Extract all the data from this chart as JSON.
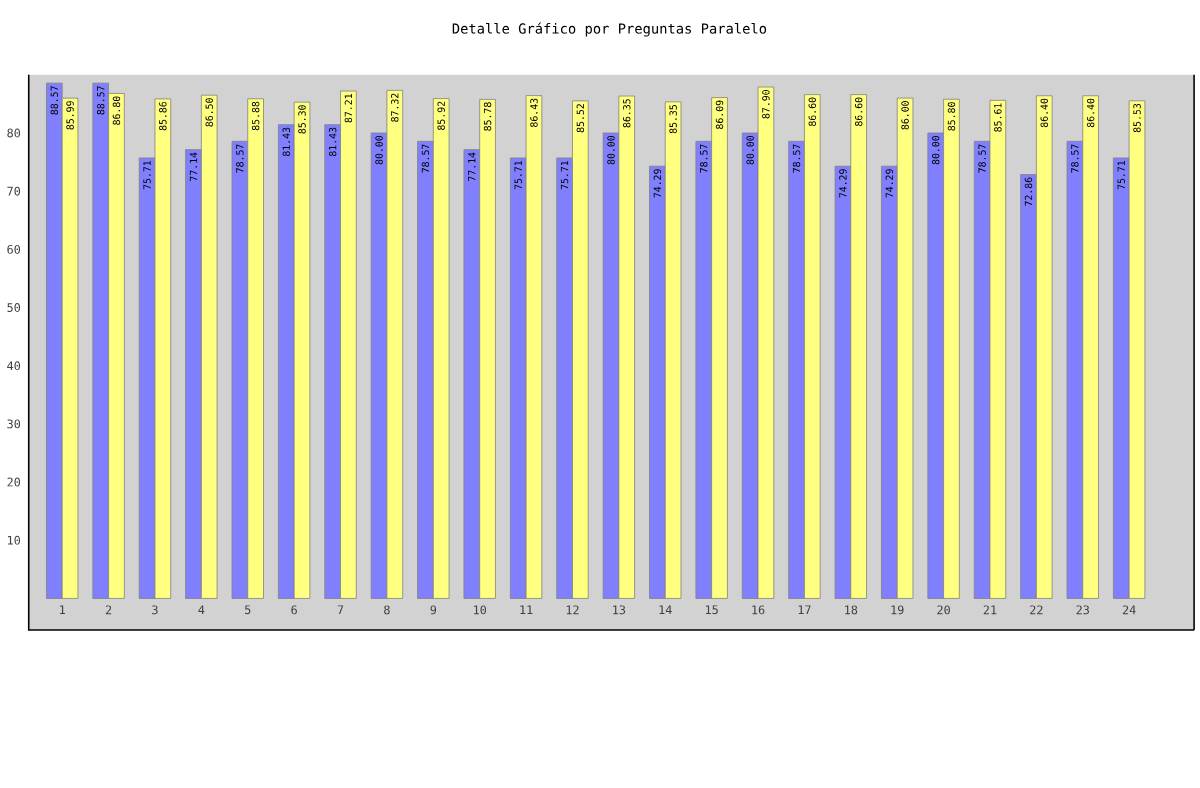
{
  "chart_data": {
    "type": "bar",
    "title": "Detalle Gráfico por Preguntas Paralelo",
    "categories": [
      "1",
      "2",
      "3",
      "4",
      "5",
      "6",
      "7",
      "8",
      "9",
      "10",
      "11",
      "12",
      "13",
      "14",
      "15",
      "16",
      "17",
      "18",
      "19",
      "20",
      "21",
      "22",
      "23",
      "24"
    ],
    "series": [
      {
        "color": "#8080ff",
        "values": [
          88.57,
          88.57,
          75.71,
          77.14,
          78.57,
          81.43,
          81.43,
          80.0,
          78.57,
          77.14,
          75.71,
          75.71,
          80.0,
          74.29,
          78.57,
          80.0,
          78.57,
          74.29,
          74.29,
          80.0,
          78.57,
          72.86,
          78.57,
          75.71
        ],
        "value_labels": [
          "88.57",
          "88.57",
          "75.71",
          "77.14",
          "78.57",
          "81.43",
          "81.43",
          "80.00",
          "78.57",
          "77.14",
          "75.71",
          "75.71",
          "80.00",
          "74.29",
          "78.57",
          "80.00",
          "78.57",
          "74.29",
          "74.29",
          "80.00",
          "78.57",
          "72.86",
          "78.57",
          "75.71"
        ]
      },
      {
        "color": "#ffff80",
        "values": [
          85.99,
          86.8,
          85.86,
          86.5,
          85.88,
          85.3,
          87.21,
          87.32,
          85.92,
          85.78,
          86.43,
          85.52,
          86.35,
          85.35,
          86.09,
          87.9,
          86.6,
          86.6,
          86.0,
          85.8,
          85.61,
          86.4,
          86.4,
          85.53
        ],
        "value_labels": [
          "85.99",
          "86.80",
          "85.86",
          "86.50",
          "85.88",
          "85.30",
          "87.21",
          "87.32",
          "85.92",
          "85.78",
          "86.43",
          "85.52",
          "86.35",
          "85.35",
          "86.09",
          "87.90",
          "86.60",
          "86.60",
          "86.00",
          "85.80",
          "85.61",
          "86.40",
          "86.40",
          "85.53"
        ]
      }
    ],
    "ylim": [
      0,
      90
    ],
    "yticks": [
      10,
      20,
      30,
      40,
      50,
      60,
      70,
      80
    ]
  }
}
